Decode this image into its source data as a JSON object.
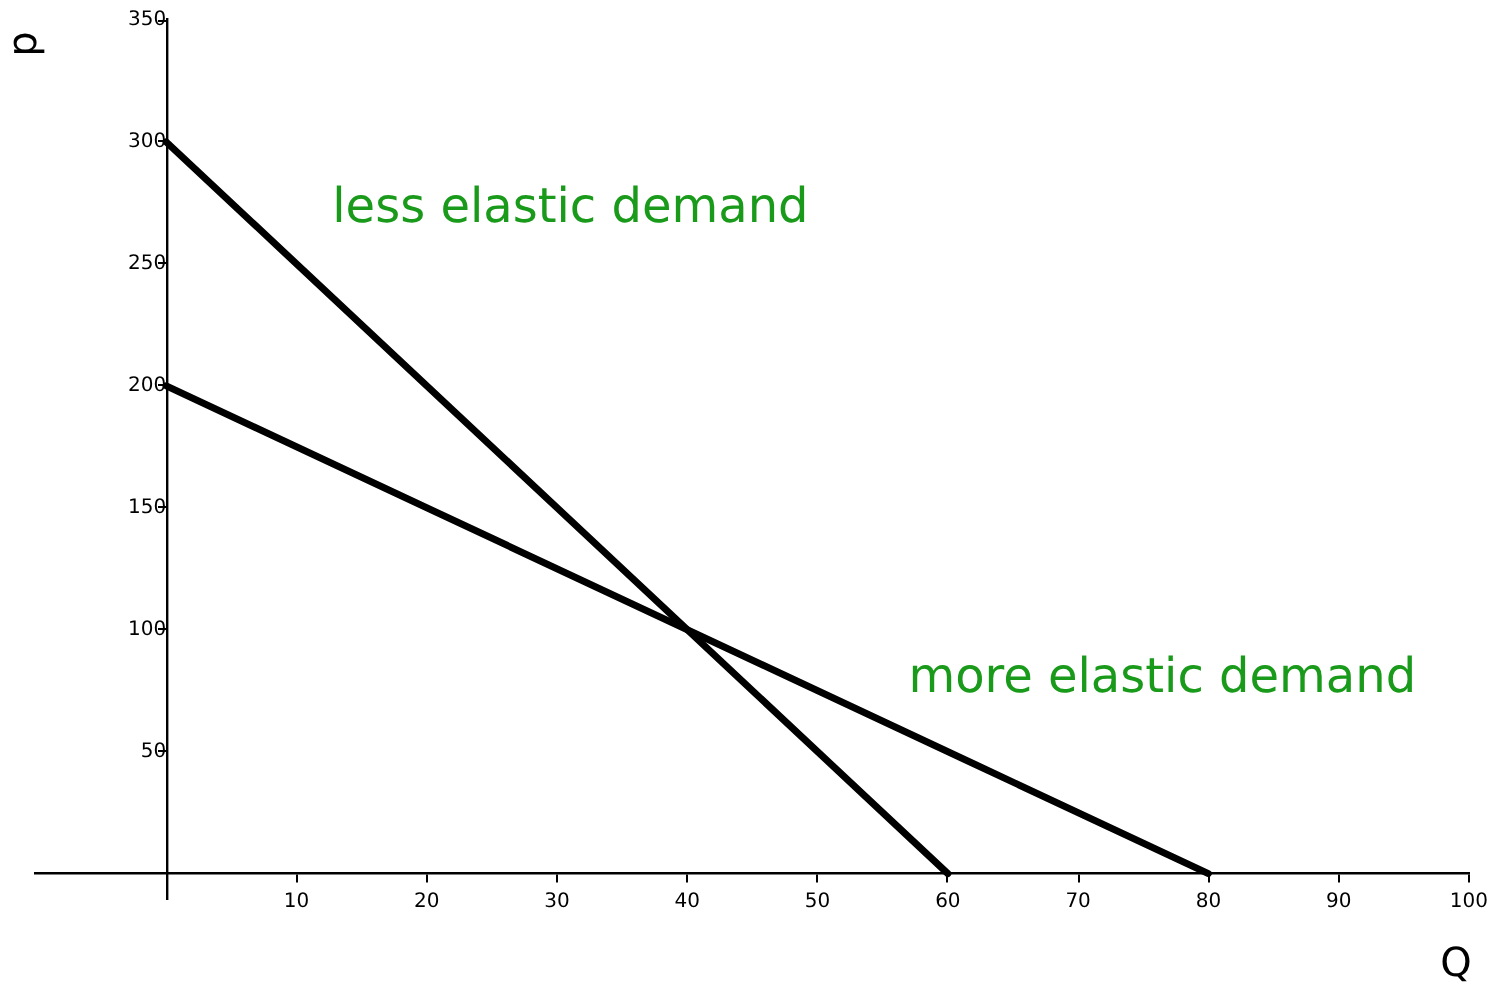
{
  "chart_data": {
    "type": "line",
    "xlabel": "Q",
    "ylabel": "p",
    "xlim": [
      -10,
      100
    ],
    "xticks": [
      10,
      20,
      30,
      40,
      50,
      60,
      70,
      80,
      90,
      100
    ],
    "ylim": [
      -10,
      350
    ],
    "yticks": [
      50,
      100,
      150,
      200,
      250,
      300,
      350
    ],
    "grid": false,
    "legend": false,
    "marker": "none",
    "line_style": "solid",
    "series": [
      {
        "name": "less elastic demand",
        "color": "#000000",
        "x": [
          0,
          60
        ],
        "values": [
          300,
          0
        ]
      },
      {
        "name": "more elastic demand",
        "color": "#000000",
        "x": [
          0,
          80
        ],
        "values": [
          200,
          0
        ]
      }
    ]
  }
}
